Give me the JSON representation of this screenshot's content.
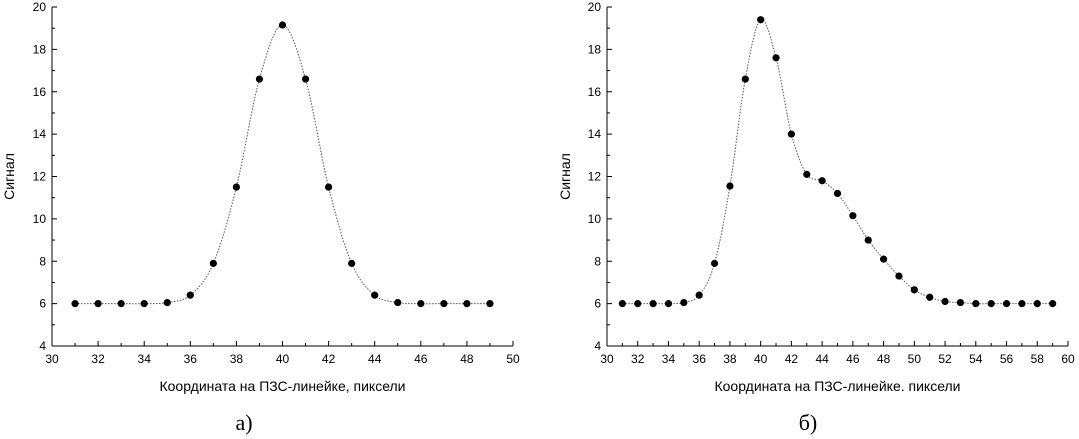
{
  "chart_data": [
    {
      "type": "scatter",
      "panel_label": "а)",
      "xlabel": "Координата на ПЗС-линейке, пиксели",
      "ylabel": "Сигнал",
      "xlim": [
        30,
        50
      ],
      "ylim": [
        4,
        20
      ],
      "x_ticks": [
        30,
        32,
        34,
        36,
        38,
        40,
        42,
        44,
        46,
        48,
        50
      ],
      "y_ticks": [
        4,
        6,
        8,
        10,
        12,
        14,
        16,
        18,
        20
      ],
      "grid": false,
      "fit_curve": "dotted",
      "points": {
        "x": [
          31,
          32,
          33,
          34,
          35,
          36,
          37,
          38,
          39,
          40,
          41,
          42,
          43,
          44,
          45,
          46,
          47,
          48,
          49
        ],
        "y": [
          6.0,
          6.0,
          6.0,
          6.0,
          6.05,
          6.4,
          7.9,
          11.5,
          16.6,
          19.15,
          16.6,
          11.5,
          7.9,
          6.4,
          6.05,
          6.0,
          6.0,
          6.0,
          6.0
        ]
      }
    },
    {
      "type": "scatter",
      "panel_label": "б)",
      "xlabel": "Координата на ПЗС-линейке. пиксели",
      "ylabel": "Сигнал",
      "xlim": [
        30,
        60
      ],
      "ylim": [
        4,
        20
      ],
      "x_ticks": [
        30,
        32,
        34,
        36,
        38,
        40,
        42,
        44,
        46,
        48,
        50,
        52,
        54,
        56,
        58,
        60
      ],
      "y_ticks": [
        4,
        6,
        8,
        10,
        12,
        14,
        16,
        18,
        20
      ],
      "grid": false,
      "fit_curve": "dotted",
      "points": {
        "x": [
          31,
          32,
          33,
          34,
          35,
          36,
          37,
          38,
          39,
          40,
          41,
          42,
          43,
          44,
          45,
          46,
          47,
          48,
          49,
          50,
          51,
          52,
          53,
          54,
          55,
          56,
          57,
          58,
          59
        ],
        "y": [
          6.0,
          6.0,
          6.0,
          6.0,
          6.05,
          6.4,
          7.9,
          11.55,
          16.6,
          19.4,
          17.6,
          14.0,
          12.1,
          11.8,
          11.2,
          10.15,
          9.0,
          8.1,
          7.3,
          6.65,
          6.3,
          6.1,
          6.05,
          6.0,
          6.0,
          6.0,
          6.0,
          6.0,
          6.0
        ]
      }
    }
  ]
}
